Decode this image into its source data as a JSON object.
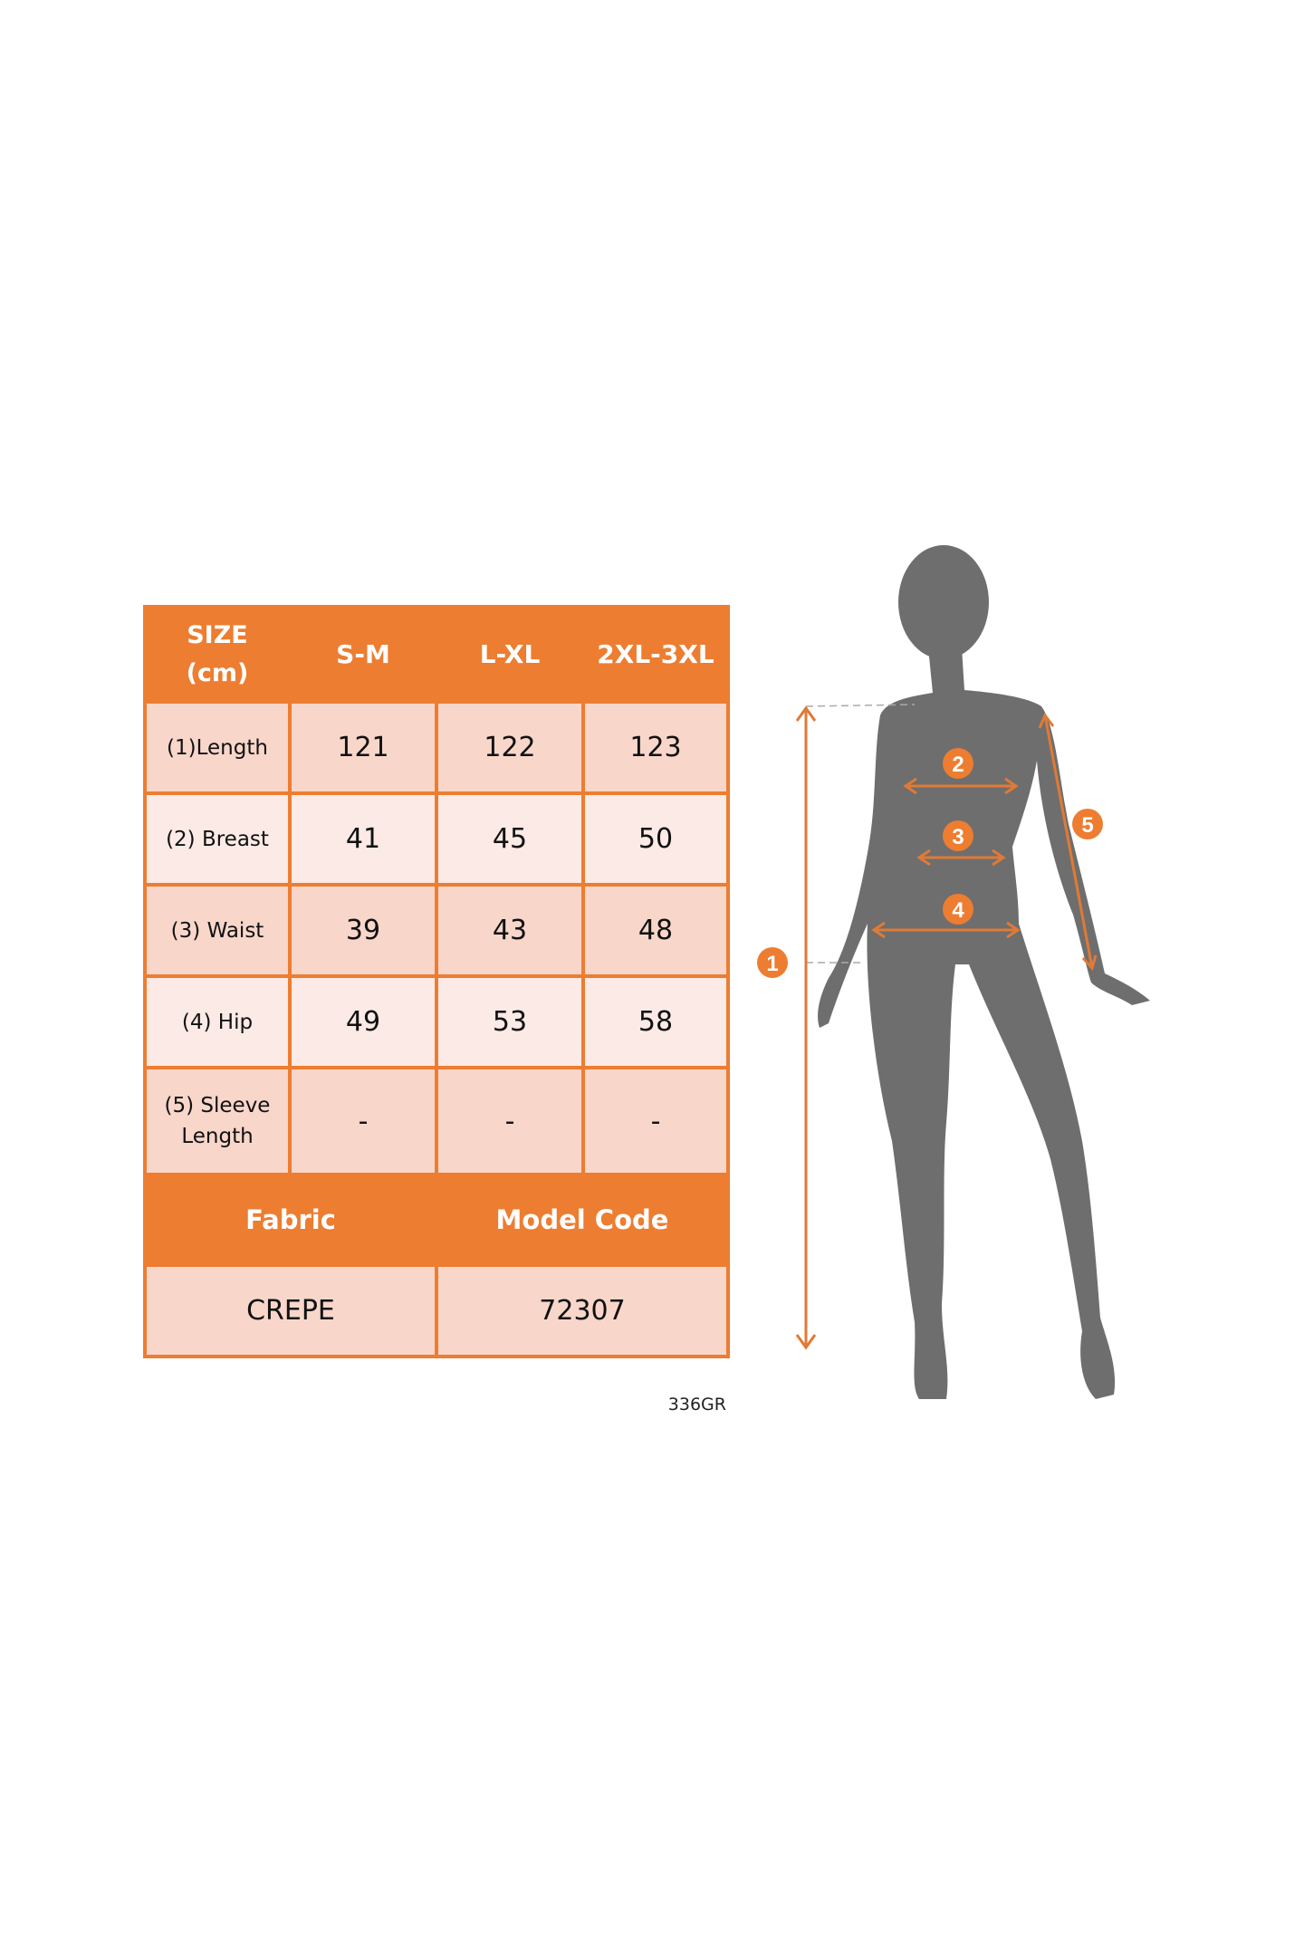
{
  "table": {
    "header": [
      "SIZE",
      "(cm)",
      "S-M",
      "L-XL",
      "2XL-3XL"
    ],
    "rows": [
      {
        "label": "(1)Length",
        "values": [
          "121",
          "122",
          "123"
        ]
      },
      {
        "label": "(2) Breast",
        "values": [
          "41",
          "45",
          "50"
        ]
      },
      {
        "label": "(3) Waist",
        "values": [
          "39",
          "43",
          "48"
        ]
      },
      {
        "label": "(4) Hip",
        "values": [
          "49",
          "53",
          "58"
        ]
      },
      {
        "label_line1": "(5) Sleeve",
        "label_line2": "Length",
        "values": [
          "-",
          "-",
          "-"
        ]
      }
    ],
    "fabric_header": "Fabric",
    "model_code_header": "Model Code",
    "fabric_value": "CREPE",
    "model_code_value": "72307"
  },
  "code_mark": "336GR",
  "figure": {
    "markers": [
      "1",
      "2",
      "3",
      "4",
      "5"
    ]
  },
  "colors": {
    "accent": "#ED7D31",
    "row_dark": "#F8D6CA",
    "row_light": "#FBEAE5",
    "silhouette": "#6E6E6E"
  }
}
